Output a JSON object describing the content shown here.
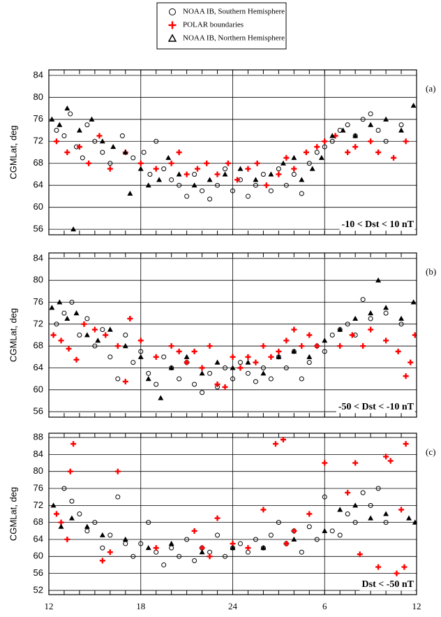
{
  "chart_data": [
    {
      "type": "scatter",
      "label": "(a)",
      "annotation": "-10 < Dst < 10 nT",
      "y_label": "CGMLat, deg",
      "xlim": [
        12,
        36
      ],
      "xticks": [
        12,
        18,
        24,
        {
          "value": 30,
          "label": "6"
        },
        {
          "value": 36,
          "label": "12"
        }
      ],
      "ylim": [
        55,
        85
      ],
      "yticks": [
        56,
        60,
        64,
        68,
        72,
        76,
        80,
        84
      ],
      "grid": true,
      "series": [
        {
          "name": "NOAA IB, Southern Hemisphere",
          "color": "#000000",
          "marker": "circle",
          "x": [
            12.5,
            13,
            13.4,
            13.8,
            14.2,
            14.5,
            15,
            15.5,
            16,
            16.8,
            17.5,
            18.2,
            18.6,
            19,
            19.5,
            20,
            20.5,
            21,
            21.5,
            22,
            22.5,
            23,
            23.5,
            24,
            24.5,
            25,
            25.5,
            26,
            26.5,
            27,
            27.5,
            28,
            28.5,
            29,
            29.5,
            30,
            30.5,
            31,
            31.5,
            32,
            32.5,
            33,
            33.5,
            34,
            35
          ],
          "values": [
            74,
            73,
            77,
            71,
            69,
            75,
            72,
            70,
            68,
            73,
            69,
            70,
            66,
            72,
            67,
            65,
            64,
            62,
            66,
            63,
            61.5,
            64,
            67,
            63,
            65,
            62,
            64,
            66,
            63,
            67,
            64,
            66,
            62.5,
            68,
            70,
            71,
            72,
            74,
            75,
            73,
            76,
            77,
            74,
            72,
            75
          ]
        },
        {
          "name": "POLAR boundaries",
          "color": "#ff0000",
          "marker": "plus",
          "x": [
            12.5,
            13.2,
            14,
            14.6,
            15.3,
            16,
            17,
            18,
            19,
            20,
            20.5,
            21,
            21.7,
            22.3,
            23,
            23.7,
            24.3,
            25,
            25.6,
            26.2,
            27,
            27.5,
            28,
            28.8,
            29.5,
            30,
            30.7,
            31.5,
            32,
            33,
            33.5,
            34.5,
            35.3
          ],
          "values": [
            72,
            70,
            71,
            68,
            73,
            67,
            70,
            68,
            67,
            68,
            70,
            66,
            67,
            68,
            66,
            68,
            65,
            67,
            68,
            64,
            66,
            69,
            67,
            70,
            71,
            72,
            73,
            70,
            71,
            72,
            70,
            69,
            72
          ]
        },
        {
          "name": "NOAA IB, Northern Hemisphere",
          "color": "#000000",
          "marker": "triangle",
          "x": [
            12.2,
            12.7,
            13.2,
            13.6,
            14,
            14.8,
            15.5,
            16.2,
            17,
            17.3,
            18,
            18.5,
            19.2,
            19.8,
            20.5,
            21.5,
            22.5,
            23.5,
            24.5,
            25.5,
            26.5,
            27.3,
            28,
            28.5,
            29.2,
            29.8,
            30.5,
            31.2,
            32,
            33,
            34,
            35,
            35.8
          ],
          "values": [
            76,
            75,
            78,
            56,
            74,
            76,
            72,
            71,
            70,
            62.5,
            67,
            64,
            65,
            69,
            66,
            64,
            65,
            66,
            67,
            65,
            66,
            68,
            69,
            65,
            67,
            69,
            73,
            74,
            73,
            75,
            76,
            74,
            78.5
          ]
        }
      ]
    },
    {
      "type": "scatter",
      "label": "(b)",
      "annotation": "-50 < Dst < -10 nT",
      "y_label": "CGMLat, deg",
      "xlim": [
        12,
        36
      ],
      "xticks": [
        12,
        18,
        24,
        {
          "value": 30,
          "label": "6"
        },
        {
          "value": 36,
          "label": "12"
        }
      ],
      "ylim": [
        55,
        85
      ],
      "yticks": [
        56,
        60,
        64,
        68,
        72,
        76,
        80,
        84
      ],
      "grid": true,
      "series": [
        {
          "color": "#000000",
          "marker": "circle",
          "x": [
            12.5,
            13,
            13.5,
            14,
            14.5,
            15,
            15.5,
            16,
            16.5,
            17,
            17.5,
            18,
            18.5,
            19,
            19.5,
            20,
            20.5,
            21,
            21.5,
            22,
            22.5,
            23,
            23.5,
            24,
            24.5,
            25,
            25.5,
            26,
            26.5,
            27,
            27.5,
            28,
            28.5,
            29,
            29.5,
            30,
            30.5,
            31,
            31.5,
            32,
            32.5,
            33,
            34,
            35
          ],
          "values": [
            72,
            74,
            76,
            70,
            73,
            68,
            71,
            66,
            62,
            70,
            65,
            67,
            63,
            61,
            66,
            64,
            62,
            65,
            61,
            59.5,
            63,
            60.5,
            64,
            62,
            65,
            63,
            61.5,
            64,
            62,
            66,
            64,
            67,
            62,
            65,
            68,
            67,
            70,
            71,
            72,
            70,
            76.5,
            73,
            74,
            72
          ]
        },
        {
          "color": "#ff0000",
          "marker": "plus",
          "x": [
            12.3,
            12.8,
            13.3,
            13.8,
            14.3,
            15,
            15.7,
            16.5,
            17,
            17.3,
            18,
            19,
            20,
            20.5,
            21,
            21.5,
            22,
            22.5,
            23,
            23.5,
            24,
            24.5,
            25,
            25.5,
            26,
            26.5,
            27,
            27.5,
            28,
            28.5,
            29,
            29.5,
            31,
            31.8,
            32.5,
            33,
            34,
            34.8,
            35.3,
            35.6,
            35.9
          ],
          "values": [
            70,
            69,
            67.5,
            65.5,
            72,
            71,
            70,
            68,
            61.5,
            73,
            69,
            66,
            68,
            67,
            65,
            67,
            64,
            68,
            61,
            60.5,
            66,
            64,
            66,
            65,
            68,
            66,
            67,
            69,
            71,
            68,
            70,
            68,
            68,
            70,
            68,
            71,
            69,
            67,
            62.5,
            65,
            70
          ]
        },
        {
          "color": "#000000",
          "marker": "triangle",
          "x": [
            12.2,
            12.7,
            13.2,
            13.8,
            14.5,
            15.2,
            16,
            17,
            18,
            18.5,
            19.3,
            20,
            21,
            22,
            23,
            24,
            25,
            26,
            27,
            28,
            29,
            30,
            31,
            32,
            33,
            33.5,
            34,
            35,
            35.8
          ],
          "values": [
            75,
            76,
            73,
            74,
            70,
            69,
            71,
            68,
            66,
            62,
            58.5,
            64,
            66,
            63,
            65,
            64,
            65,
            63,
            66,
            67,
            66,
            69,
            71,
            73,
            74,
            80,
            75,
            73,
            76
          ]
        }
      ]
    },
    {
      "type": "scatter",
      "label": "(c)",
      "annotation": "Dst < -50 nT",
      "y_label": "CGMLat, deg",
      "xlim": [
        12,
        36
      ],
      "xticks": [
        12,
        18,
        24,
        {
          "value": 30,
          "label": "6"
        },
        {
          "value": 36,
          "label": "12"
        }
      ],
      "ylim": [
        51,
        89
      ],
      "yticks": [
        52,
        56,
        60,
        64,
        68,
        72,
        76,
        80,
        84,
        88
      ],
      "grid": true,
      "series": [
        {
          "color": "#000000",
          "marker": "circle",
          "x": [
            13,
            13.5,
            14,
            14.5,
            15,
            15.5,
            16,
            16.5,
            17,
            17.5,
            18,
            18.5,
            19,
            19.5,
            20,
            20.5,
            21,
            21.5,
            22,
            22.5,
            23,
            23.5,
            24,
            24.5,
            25,
            25.5,
            26,
            26.5,
            27,
            27.5,
            28,
            28.5,
            29,
            29.5,
            30,
            30.5,
            31,
            31.5,
            32,
            32.5,
            33,
            33.5,
            34
          ],
          "values": [
            76,
            73,
            70,
            66,
            68,
            62,
            65,
            74,
            63,
            60,
            63,
            68,
            61,
            58,
            62,
            60,
            64,
            59,
            62,
            61,
            65,
            60,
            62,
            63,
            61,
            64,
            62,
            65,
            68,
            63,
            66,
            61,
            67,
            64,
            74,
            66,
            65,
            70,
            68,
            75,
            72,
            76,
            68
          ]
        },
        {
          "color": "#ff0000",
          "marker": "plus",
          "x": [
            12.5,
            12.8,
            13.2,
            13.4,
            13.6,
            15.5,
            16,
            16.5,
            19,
            21.5,
            22,
            22.5,
            23,
            24,
            25,
            26,
            26.8,
            27.3,
            27.5,
            28,
            29,
            30,
            31.5,
            32,
            32.3,
            33.5,
            34,
            34.3,
            34.7,
            35,
            35.2,
            35.3
          ],
          "values": [
            70,
            68,
            64,
            80,
            86.5,
            59,
            61,
            80,
            62,
            66,
            62,
            60,
            69,
            63,
            62,
            71,
            86.5,
            87.5,
            63,
            66,
            70,
            82,
            75,
            82,
            60.5,
            57.5,
            83.5,
            82.5,
            56,
            71,
            57.5,
            86.5
          ]
        },
        {
          "color": "#000000",
          "marker": "triangle",
          "x": [
            12.3,
            12.8,
            13.5,
            14.5,
            15.5,
            17,
            18.5,
            20,
            22,
            24,
            26,
            28,
            30,
            31,
            32,
            33,
            34,
            35.5,
            35.9
          ],
          "values": [
            72,
            67,
            69,
            67,
            65,
            64,
            62,
            63,
            61,
            62,
            62,
            64,
            66,
            71,
            72,
            69,
            70,
            69,
            68
          ]
        }
      ]
    }
  ]
}
